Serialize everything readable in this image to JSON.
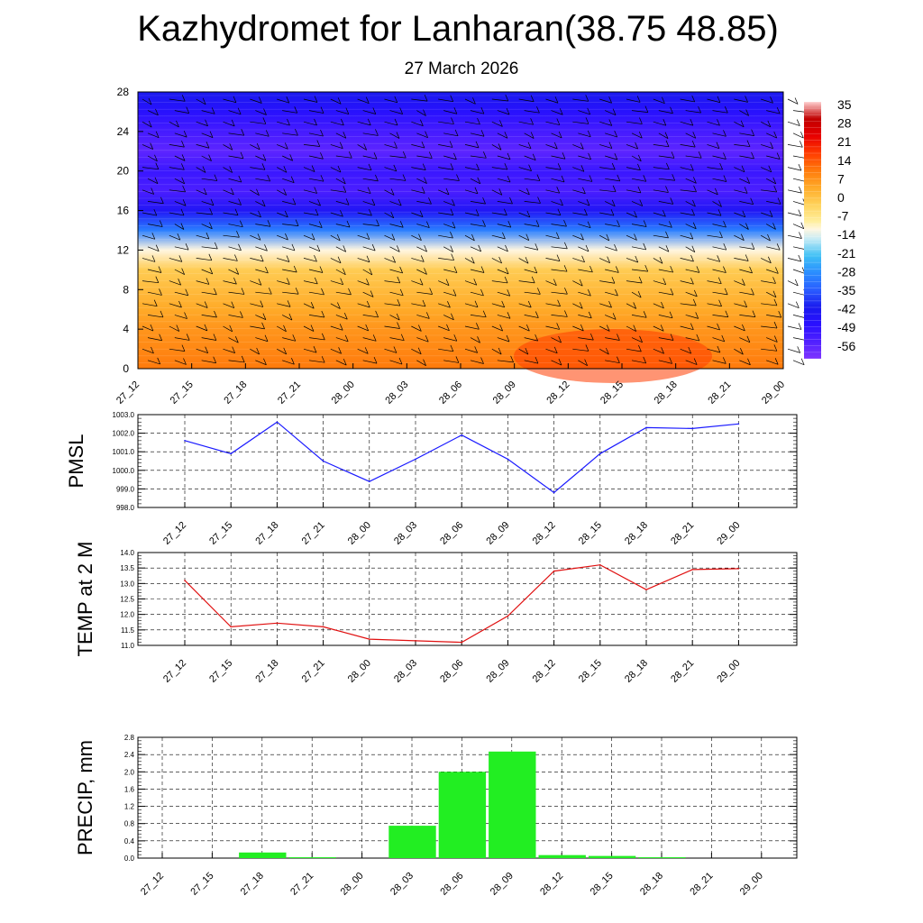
{
  "header": {
    "title": "Kazhydromet for Lanharan(38.75 48.85)",
    "subtitle": "27 March 2026"
  },
  "colors": {
    "pmsl_line": "#1a1aff",
    "temp_line": "#e01010",
    "precip_bar": "#22ee22"
  },
  "chart_data": [
    {
      "type": "heatmap",
      "subtype": "time-height cross section with wind barbs",
      "x_ticks": [
        "27_12",
        "27_15",
        "27_18",
        "27_21",
        "28_00",
        "28_03",
        "28_06",
        "28_09",
        "28_12",
        "28_15",
        "28_18",
        "28_21",
        "29_00"
      ],
      "y_ticks": [
        "0",
        "4",
        "8",
        "12",
        "16",
        "20",
        "24",
        "28"
      ],
      "ylim": [
        0,
        28
      ],
      "colorbar": {
        "labels": [
          "35",
          "28",
          "21",
          "14",
          "7",
          "0",
          "-7",
          "-14",
          "-21",
          "-28",
          "-35",
          "-42",
          "-49",
          "-56"
        ]
      },
      "temperature_by_level": {
        "levels": [
          0,
          2,
          4,
          6,
          8,
          10,
          12,
          14,
          16,
          18,
          20,
          22,
          24,
          26,
          28
        ],
        "values": [
          14,
          12,
          10,
          7,
          4,
          1,
          -10,
          -30,
          -45,
          -55,
          -52,
          -58,
          -54,
          -48,
          -42
        ]
      }
    },
    {
      "type": "line",
      "ylabel": "PMSL",
      "categories": [
        "27_12",
        "27_15",
        "27_18",
        "27_21",
        "28_00",
        "28_03",
        "28_06",
        "28_09",
        "28_12",
        "28_15",
        "28_18",
        "28_21",
        "29_00"
      ],
      "values": [
        1001.6,
        1000.9,
        1002.6,
        1000.5,
        999.4,
        1000.6,
        1001.9,
        1000.6,
        998.8,
        1000.9,
        1002.3,
        1002.25,
        1002.5
      ],
      "y_ticks": [
        "998.0",
        "999.0",
        "1000.0",
        "1001.0",
        "1002.0",
        "1003.0"
      ],
      "ylim": [
        998.0,
        1003.0
      ]
    },
    {
      "type": "line",
      "ylabel": "TEMP at 2 M",
      "categories": [
        "27_12",
        "27_15",
        "27_18",
        "27_21",
        "28_00",
        "28_03",
        "28_06",
        "28_09",
        "28_12",
        "28_15",
        "28_18",
        "28_21",
        "29_00"
      ],
      "values": [
        13.1,
        11.6,
        11.72,
        11.6,
        11.2,
        11.15,
        11.1,
        11.95,
        13.4,
        13.6,
        12.8,
        13.45,
        13.48
      ],
      "y_ticks": [
        "11.0",
        "11.5",
        "12.0",
        "12.5",
        "13.0",
        "13.5",
        "14.0"
      ],
      "ylim": [
        11.0,
        14.0
      ]
    },
    {
      "type": "bar",
      "ylabel": "PRECIP, mm",
      "categories": [
        "27_12",
        "27_15",
        "27_18",
        "27_21",
        "28_00",
        "28_03",
        "28_06",
        "28_09",
        "28_12",
        "28_15",
        "28_18",
        "28_21",
        "29_00"
      ],
      "values": [
        0,
        0,
        0.13,
        0.02,
        0,
        0.75,
        2.0,
        2.47,
        0.07,
        0.05,
        0.02,
        0,
        0
      ],
      "y_ticks": [
        "0.0",
        "0.4",
        "0.8",
        "1.2",
        "1.6",
        "2.0",
        "2.4",
        "2.8"
      ],
      "ylim": [
        0,
        2.8
      ]
    }
  ]
}
